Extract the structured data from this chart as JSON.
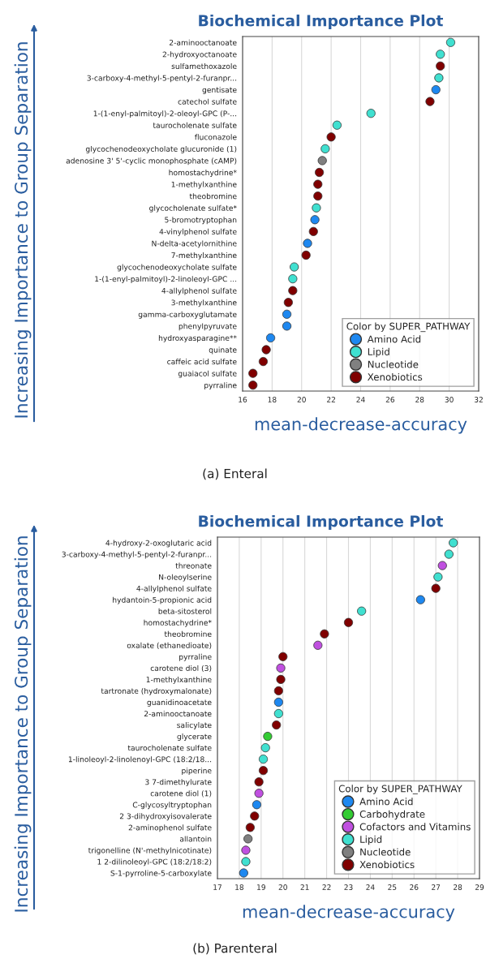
{
  "chart_data": [
    {
      "type": "scatter",
      "orientation": "horizontal",
      "title": "Biochemical Importance Plot",
      "xlabel": "mean-decrease-accuracy",
      "ylabel": "Increasing Importance to Group Separation",
      "legend_title": "Color by SUPER_PATHWAY",
      "legend": "bottom right",
      "grid": "x",
      "marker": "circle",
      "annotations": [
        "(a) Enteral"
      ],
      "xlim": [
        16,
        32
      ],
      "xticks": [
        16,
        18,
        20,
        22,
        24,
        26,
        28,
        30,
        32
      ],
      "categories": [
        "2-aminooctanoate",
        "2-hydroxyoctanoate",
        "sulfamethoxazole",
        "3-carboxy-4-methyl-5-pentyl-2-furanpr...",
        "gentisate",
        "catechol sulfate",
        "1-(1-enyl-palmitoyl)-2-oleoyl-GPC (P-...",
        "taurocholenate sulfate",
        "fluconazole",
        "glycochenodeoxycholate glucuronide (1)",
        "adenosine 3' 5'-cyclic monophosphate (cAMP)",
        "homostachydrine*",
        "1-methylxanthine",
        "theobromine",
        "glycocholenate sulfate*",
        "5-bromotryptophan",
        "4-vinylphenol sulfate",
        "N-delta-acetylornithine",
        "7-methylxanthine",
        "glycochenodeoxycholate sulfate",
        "1-(1-enyl-palmitoyl)-2-linoleoyl-GPC ...",
        "4-allylphenol sulfate",
        "3-methylxanthine",
        "gamma-carboxyglutamate",
        "phenylpyruvate",
        "hydroxyasparagine**",
        "quinate",
        "caffeic acid sulfate",
        "guaiacol sulfate",
        "pyrraline"
      ],
      "series": [
        {
          "name": "Amino Acid",
          "color": "#1e88f0",
          "values": [
            null,
            null,
            null,
            null,
            29.1,
            null,
            null,
            null,
            null,
            null,
            null,
            null,
            null,
            null,
            null,
            20.9,
            null,
            20.4,
            null,
            null,
            null,
            null,
            null,
            19.0,
            19.0,
            17.9,
            null,
            null,
            null,
            null
          ]
        },
        {
          "name": "Lipid",
          "color": "#40e0d0",
          "values": [
            30.1,
            29.4,
            null,
            29.3,
            null,
            null,
            24.7,
            22.4,
            null,
            21.6,
            null,
            null,
            null,
            null,
            21.0,
            null,
            null,
            null,
            null,
            19.5,
            19.4,
            null,
            null,
            null,
            null,
            null,
            null,
            null,
            null,
            null
          ]
        },
        {
          "name": "Nucleotide",
          "color": "#808080",
          "values": [
            null,
            null,
            null,
            null,
            null,
            null,
            null,
            null,
            null,
            null,
            21.4,
            null,
            null,
            null,
            null,
            null,
            null,
            null,
            null,
            null,
            null,
            null,
            null,
            null,
            null,
            null,
            null,
            null,
            null,
            null
          ]
        },
        {
          "name": "Xenobiotics",
          "color": "#800000",
          "values": [
            null,
            null,
            29.4,
            null,
            null,
            28.7,
            null,
            null,
            22.0,
            null,
            null,
            21.2,
            21.1,
            21.1,
            null,
            null,
            20.8,
            null,
            20.3,
            null,
            null,
            19.4,
            19.1,
            null,
            null,
            null,
            17.6,
            17.4,
            16.7,
            16.7
          ]
        }
      ]
    },
    {
      "type": "scatter",
      "orientation": "horizontal",
      "title": "Biochemical Importance Plot",
      "xlabel": "mean-decrease-accuracy",
      "ylabel": "Increasing Importance to Group Separation",
      "legend_title": "Color by SUPER_PATHWAY",
      "legend": "bottom right",
      "grid": "x",
      "marker": "circle",
      "annotations": [
        "(b) Parenteral"
      ],
      "xlim": [
        17,
        29
      ],
      "xticks": [
        17,
        18,
        19,
        20,
        21,
        22,
        23,
        24,
        25,
        26,
        27,
        28,
        29
      ],
      "categories": [
        "4-hydroxy-2-oxoglutaric acid",
        "3-carboxy-4-methyl-5-pentyl-2-furanpr...",
        "threonate",
        "N-oleoylserine",
        "4-allylphenol sulfate",
        "hydantoin-5-propionic acid",
        "beta-sitosterol",
        "homostachydrine*",
        "theobromine",
        "oxalate (ethanedioate)",
        "pyrraline",
        "carotene diol (3)",
        "1-methylxanthine",
        "tartronate (hydroxymalonate)",
        "guanidinoacetate",
        "2-aminooctanoate",
        "salicylate",
        "glycerate",
        "taurocholenate sulfate",
        "1-linoleoyl-2-linolenoyl-GPC (18:2/18...",
        "piperine",
        "3 7-dimethylurate",
        "carotene diol (1)",
        "C-glycosyltryptophan",
        "2 3-dihydroxyisovalerate",
        "2-aminophenol sulfate",
        "allantoin",
        "trigonelline (N'-methylnicotinate)",
        "1 2-dilinoleoyl-GPC (18:2/18:2)",
        "S-1-pyrroline-5-carboxylate"
      ],
      "series": [
        {
          "name": "Amino Acid",
          "color": "#1e88f0",
          "values": [
            null,
            null,
            null,
            null,
            null,
            26.3,
            null,
            null,
            null,
            null,
            null,
            null,
            null,
            null,
            19.8,
            null,
            null,
            null,
            null,
            null,
            null,
            null,
            null,
            18.8,
            null,
            null,
            null,
            null,
            null,
            18.2
          ]
        },
        {
          "name": "Carbohydrate",
          "color": "#33cc33",
          "values": [
            null,
            null,
            null,
            null,
            null,
            null,
            null,
            null,
            null,
            null,
            null,
            null,
            null,
            null,
            null,
            null,
            null,
            19.3,
            null,
            null,
            null,
            null,
            null,
            null,
            null,
            null,
            null,
            null,
            null,
            null
          ]
        },
        {
          "name": "Cofactors and Vitamins",
          "color": "#c050e0",
          "values": [
            null,
            null,
            27.3,
            null,
            null,
            null,
            null,
            null,
            null,
            21.6,
            null,
            19.9,
            null,
            null,
            null,
            null,
            null,
            null,
            null,
            null,
            null,
            null,
            18.9,
            null,
            null,
            null,
            null,
            18.3,
            null,
            null
          ]
        },
        {
          "name": "Lipid",
          "color": "#40e0d0",
          "values": [
            27.8,
            27.6,
            null,
            27.1,
            null,
            null,
            23.6,
            null,
            null,
            null,
            null,
            null,
            null,
            null,
            null,
            19.8,
            null,
            null,
            19.2,
            19.1,
            null,
            null,
            null,
            null,
            null,
            null,
            null,
            null,
            18.3,
            null
          ]
        },
        {
          "name": "Nucleotide",
          "color": "#808080",
          "values": [
            null,
            null,
            null,
            null,
            null,
            null,
            null,
            null,
            null,
            null,
            null,
            null,
            null,
            null,
            null,
            null,
            null,
            null,
            null,
            null,
            null,
            null,
            null,
            null,
            null,
            null,
            18.4,
            null,
            null,
            null
          ]
        },
        {
          "name": "Xenobiotics",
          "color": "#800000",
          "values": [
            null,
            null,
            null,
            null,
            27.0,
            null,
            null,
            23.0,
            21.9,
            null,
            20.0,
            null,
            19.9,
            19.8,
            null,
            null,
            19.7,
            null,
            null,
            null,
            19.1,
            18.9,
            null,
            null,
            18.7,
            18.5,
            null,
            null,
            null,
            null
          ]
        }
      ]
    }
  ]
}
